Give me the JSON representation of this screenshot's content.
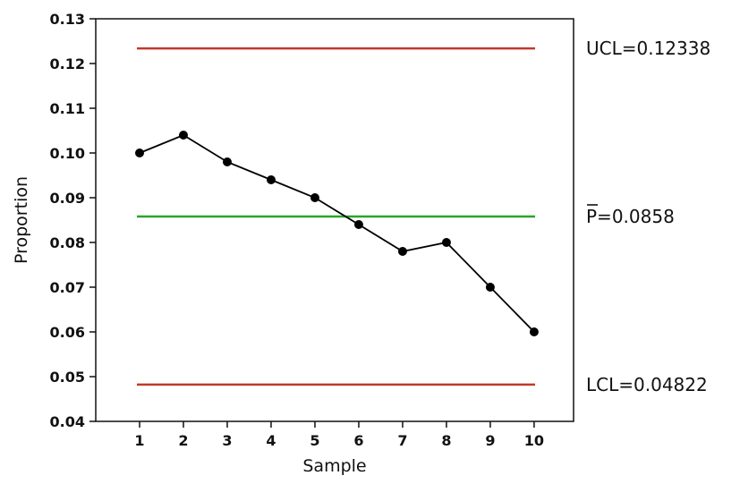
{
  "chart_data": {
    "type": "line",
    "title": "",
    "xlabel": "Sample",
    "ylabel": "Proportion",
    "x": [
      1,
      2,
      3,
      4,
      5,
      6,
      7,
      8,
      9,
      10
    ],
    "series": [
      {
        "values": [
          0.1,
          0.104,
          0.098,
          0.094,
          0.09,
          0.084,
          0.078,
          0.08,
          0.07,
          0.06
        ],
        "color": "#000000",
        "marker": "circle"
      }
    ],
    "xlim": [
      0.0,
      10.9
    ],
    "ylim": [
      0.04,
      0.13
    ],
    "yticks": [
      "0.04",
      "0.05",
      "0.06",
      "0.07",
      "0.08",
      "0.09",
      "0.10",
      "0.11",
      "0.12",
      "0.13"
    ],
    "xticks": [
      "1",
      "2",
      "3",
      "4",
      "5",
      "6",
      "7",
      "8",
      "9",
      "10"
    ],
    "reference_lines": [
      {
        "key": "ucl",
        "value": 0.12338,
        "label": "UCL=0.12338",
        "color": "#c0392b"
      },
      {
        "key": "pbar",
        "value": 0.0858,
        "label": "P=0.0858",
        "overline": true,
        "color": "#2aa52a"
      },
      {
        "key": "lcl",
        "value": 0.04822,
        "label": "LCL=0.04822",
        "color": "#c0392b"
      }
    ],
    "grid": false,
    "legend": "none"
  }
}
